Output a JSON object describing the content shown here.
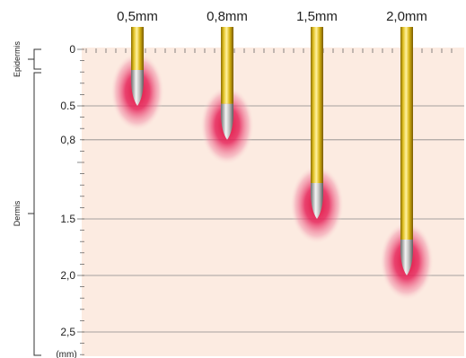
{
  "needle_sizes": [
    "0,5mm",
    "0,8mm",
    "1,5mm",
    "2,0mm"
  ],
  "needle_depths_mm": [
    0.5,
    0.8,
    1.5,
    2.0
  ],
  "depth_ticks": [
    "0",
    "0.5",
    "0,8",
    "1.5",
    "2,0",
    "2,5"
  ],
  "depth_tick_values_mm": [
    0,
    0.5,
    0.8,
    1.5,
    2.0,
    2.5
  ],
  "layers": {
    "epidermis": "Epidermis",
    "dermis": "Dermis"
  },
  "unit_label": "(mm)",
  "colors": {
    "skin": "#fcebe1",
    "gridline": "#8a8a8a",
    "needle_gold": "#e2c21a",
    "needle_tip_silver": "#c8c8c8",
    "glow_red": "#e0224e"
  }
}
